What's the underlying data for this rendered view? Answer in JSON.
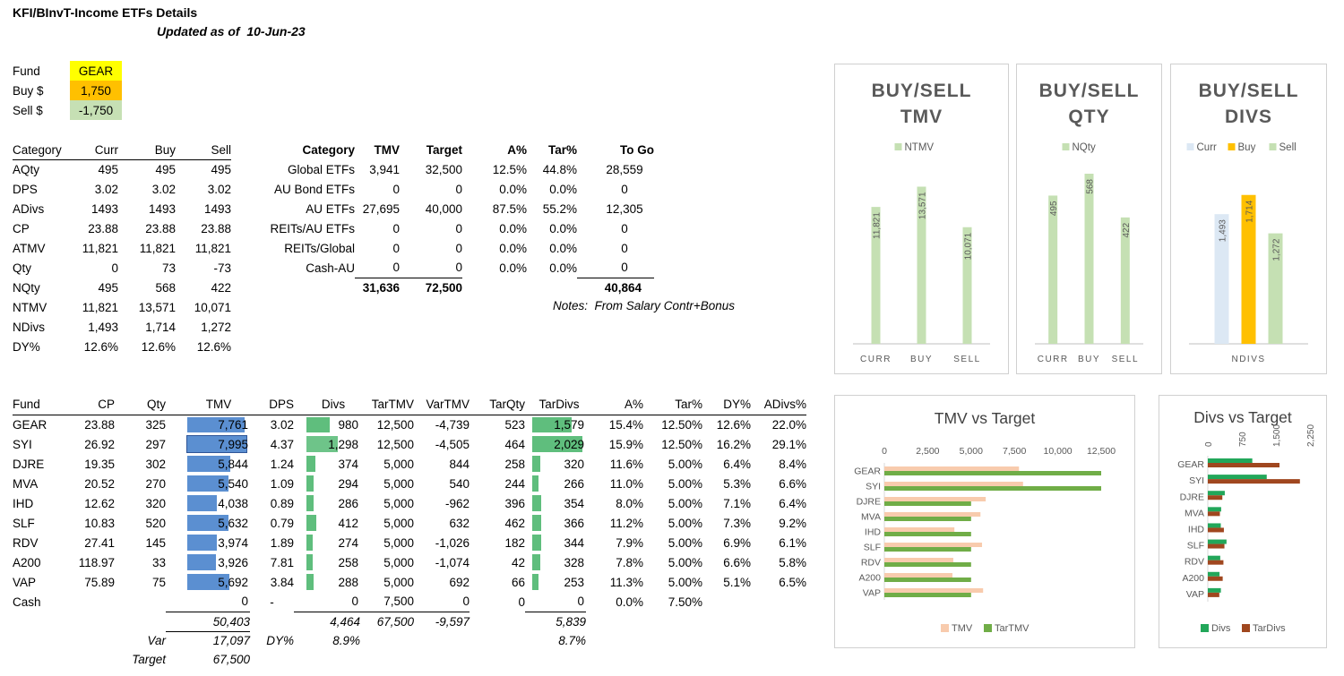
{
  "header": {
    "title": "KFI/BInvT-Income ETFs Details",
    "updated_label": "Updated as of",
    "updated_date": "10-Jun-23"
  },
  "fund_box": [
    {
      "label": "Fund",
      "value": "GEAR",
      "color": "#ffff00"
    },
    {
      "label": "Buy $",
      "value": "1,750",
      "color": "#ffc000"
    },
    {
      "label": "Sell $",
      "value": "-1,750",
      "color": "#c6e0b4"
    }
  ],
  "summary": {
    "headers": [
      "Category",
      "Curr",
      "Buy",
      "Sell"
    ],
    "rows": [
      [
        "AQty",
        "495",
        "495",
        "495"
      ],
      [
        "DPS",
        "3.02",
        "3.02",
        "3.02"
      ],
      [
        "ADivs",
        "1493",
        "1493",
        "1493"
      ],
      [
        "CP",
        "23.88",
        "23.88",
        "23.88"
      ],
      [
        "ATMV",
        "11,821",
        "11,821",
        "11,821"
      ],
      [
        "Qty",
        "0",
        "73",
        "-73"
      ],
      [
        "NQty",
        "495",
        "568",
        "422"
      ],
      [
        "NTMV",
        "11,821",
        "13,571",
        "10,071"
      ],
      [
        "NDivs",
        "1,493",
        "1,714",
        "1,272"
      ],
      [
        "DY%",
        "12.6%",
        "12.6%",
        "12.6%"
      ]
    ]
  },
  "category": {
    "headers": [
      "Category",
      "TMV",
      "Target",
      "A%",
      "Tar%",
      "To Go"
    ],
    "rows": [
      [
        "Global ETFs",
        "3,941",
        "32,500",
        "12.5%",
        "44.8%",
        "28,559"
      ],
      [
        "AU Bond ETFs",
        "0",
        "0",
        "0.0%",
        "0.0%",
        "0"
      ],
      [
        "AU ETFs",
        "27,695",
        "40,000",
        "87.5%",
        "55.2%",
        "12,305"
      ],
      [
        "REITs/AU ETFs",
        "0",
        "0",
        "0.0%",
        "0.0%",
        "0"
      ],
      [
        "REITs/Global",
        "0",
        "0",
        "0.0%",
        "0.0%",
        "0"
      ],
      [
        "Cash-AU",
        "0",
        "0",
        "0.0%",
        "0.0%",
        "0"
      ]
    ],
    "totals": {
      "tmv": "31,636",
      "target": "72,500",
      "togo": "40,864"
    },
    "notes_label": "Notes:",
    "notes_text": "From Salary Contr+Bonus"
  },
  "funds": {
    "headers": [
      "Fund",
      "CP",
      "Qty",
      "TMV",
      "DPS",
      "Divs",
      "TarTMV",
      "VarTMV",
      "TarQty",
      "TarDivs",
      "A%",
      "Tar%",
      "DY%",
      "ADivs%"
    ],
    "rows": [
      {
        "fund": "GEAR",
        "cp": "23.88",
        "qty": "325",
        "tmv": "7,761",
        "dps": "3.02",
        "divs": "980",
        "tartmv": "12,500",
        "vartmv": "-4,739",
        "tarqty": "523",
        "tardivs": "1,579",
        "a": "15.4%",
        "tar": "12.50%",
        "dy": "12.6%",
        "adivs": "22.0%"
      },
      {
        "fund": "SYI",
        "cp": "26.92",
        "qty": "297",
        "tmv": "7,995",
        "dps": "4.37",
        "divs": "1,298",
        "tartmv": "12,500",
        "vartmv": "-4,505",
        "tarqty": "464",
        "tardivs": "2,029",
        "a": "15.9%",
        "tar": "12.50%",
        "dy": "16.2%",
        "adivs": "29.1%"
      },
      {
        "fund": "DJRE",
        "cp": "19.35",
        "qty": "302",
        "tmv": "5,844",
        "dps": "1.24",
        "divs": "374",
        "tartmv": "5,000",
        "vartmv": "844",
        "tarqty": "258",
        "tardivs": "320",
        "a": "11.6%",
        "tar": "5.00%",
        "dy": "6.4%",
        "adivs": "8.4%"
      },
      {
        "fund": "MVA",
        "cp": "20.52",
        "qty": "270",
        "tmv": "5,540",
        "dps": "1.09",
        "divs": "294",
        "tartmv": "5,000",
        "vartmv": "540",
        "tarqty": "244",
        "tardivs": "266",
        "a": "11.0%",
        "tar": "5.00%",
        "dy": "5.3%",
        "adivs": "6.6%"
      },
      {
        "fund": "IHD",
        "cp": "12.62",
        "qty": "320",
        "tmv": "4,038",
        "dps": "0.89",
        "divs": "286",
        "tartmv": "5,000",
        "vartmv": "-962",
        "tarqty": "396",
        "tardivs": "354",
        "a": "8.0%",
        "tar": "5.00%",
        "dy": "7.1%",
        "adivs": "6.4%"
      },
      {
        "fund": "SLF",
        "cp": "10.83",
        "qty": "520",
        "tmv": "5,632",
        "dps": "0.79",
        "divs": "412",
        "tartmv": "5,000",
        "vartmv": "632",
        "tarqty": "462",
        "tardivs": "366",
        "a": "11.2%",
        "tar": "5.00%",
        "dy": "7.3%",
        "adivs": "9.2%"
      },
      {
        "fund": "RDV",
        "cp": "27.41",
        "qty": "145",
        "tmv": "3,974",
        "dps": "1.89",
        "divs": "274",
        "tartmv": "5,000",
        "vartmv": "-1,026",
        "tarqty": "182",
        "tardivs": "344",
        "a": "7.9%",
        "tar": "5.00%",
        "dy": "6.9%",
        "adivs": "6.1%"
      },
      {
        "fund": "A200",
        "cp": "118.97",
        "qty": "33",
        "tmv": "3,926",
        "dps": "7.81",
        "divs": "258",
        "tartmv": "5,000",
        "vartmv": "-1,074",
        "tarqty": "42",
        "tardivs": "328",
        "a": "7.8%",
        "tar": "5.00%",
        "dy": "6.6%",
        "adivs": "5.8%"
      },
      {
        "fund": "VAP",
        "cp": "75.89",
        "qty": "75",
        "tmv": "5,692",
        "dps": "3.84",
        "divs": "288",
        "tartmv": "5,000",
        "vartmv": "692",
        "tarqty": "66",
        "tardivs": "253",
        "a": "11.3%",
        "tar": "5.00%",
        "dy": "5.1%",
        "adivs": "6.5%"
      },
      {
        "fund": "Cash",
        "cp": "",
        "qty": "",
        "tmv": "0",
        "dps": "-",
        "divs": "0",
        "tartmv": "7,500",
        "vartmv": "0",
        "tarqty": "0",
        "tardivs": "0",
        "a": "0.0%",
        "tar": "7.50%",
        "dy": "",
        "adivs": ""
      }
    ],
    "bar_max": {
      "tmv": 8000,
      "divs": 2100,
      "tardivs": 2100
    },
    "totals": {
      "tmv": "50,403",
      "divs": "4,464",
      "tartmv": "67,500",
      "vartmv": "-9,597",
      "tardivs": "5,839"
    },
    "var_label": "Var",
    "var_value": "17,097",
    "dy_label": "DY%",
    "dy_divs": "8.9%",
    "dy_tardivs": "8.7%",
    "target_label": "Target",
    "target_value": "67,500",
    "colors": {
      "tmv_bar": "#5b8fd1",
      "divs_bar": "#5fbe7d"
    }
  },
  "chart_data": [
    {
      "type": "bar",
      "title": "BUY/SELL TMV",
      "title_lines": [
        "BUY/SELL",
        "TMV"
      ],
      "categories": [
        "CURR",
        "BUY",
        "SELL"
      ],
      "series": [
        {
          "name": "NTMV",
          "values": [
            11821,
            13571,
            10071
          ],
          "labels": [
            "11,821",
            "13,571",
            "10,071"
          ],
          "color": "#c5e0b3"
        }
      ],
      "ylim": [
        0,
        15000
      ]
    },
    {
      "type": "bar",
      "title": "BUY/SELL QTY",
      "title_lines": [
        "BUY/SELL",
        "QTY"
      ],
      "categories": [
        "CURR",
        "BUY",
        "SELL"
      ],
      "series": [
        {
          "name": "NQty",
          "values": [
            495,
            568,
            422
          ],
          "labels": [
            "495",
            "568",
            "422"
          ],
          "color": "#c5e0b3"
        }
      ],
      "ylim": [
        0,
        580
      ]
    },
    {
      "type": "bar",
      "title": "BUY/SELL DIVS",
      "title_lines": [
        "BUY/SELL",
        "DIVS"
      ],
      "categories": [
        "NDIVS"
      ],
      "series": [
        {
          "name": "Curr",
          "values": [
            1493
          ],
          "labels": [
            "1,493"
          ],
          "color": "#dce8f4"
        },
        {
          "name": "Buy",
          "values": [
            1714
          ],
          "labels": [
            "1,714"
          ],
          "color": "#ffc000"
        },
        {
          "name": "Sell",
          "values": [
            1272
          ],
          "labels": [
            "1,272"
          ],
          "color": "#c5e0b3"
        }
      ],
      "ylim": [
        0,
        2000
      ]
    },
    {
      "type": "bar",
      "orientation": "horizontal",
      "title": "TMV vs Target",
      "categories": [
        "GEAR",
        "SYI",
        "DJRE",
        "MVA",
        "IHD",
        "SLF",
        "RDV",
        "A200",
        "VAP"
      ],
      "series": [
        {
          "name": "TMV",
          "values": [
            7761,
            7995,
            5844,
            5540,
            4038,
            5632,
            3974,
            3926,
            5692
          ],
          "color": "#f8cbad"
        },
        {
          "name": "TarTMV",
          "values": [
            12500,
            12500,
            5000,
            5000,
            5000,
            5000,
            5000,
            5000,
            5000
          ],
          "color": "#70ad47"
        }
      ],
      "xlim": [
        0,
        12500
      ],
      "xticks": [
        "0",
        "2,500",
        "5,000",
        "7,500",
        "10,000",
        "12,500"
      ]
    },
    {
      "type": "bar",
      "orientation": "horizontal",
      "title": "Divs vs Target",
      "categories": [
        "GEAR",
        "SYI",
        "DJRE",
        "MVA",
        "IHD",
        "SLF",
        "RDV",
        "A200",
        "VAP"
      ],
      "series": [
        {
          "name": "Divs",
          "values": [
            980,
            1298,
            374,
            294,
            286,
            412,
            274,
            258,
            288
          ],
          "color": "#22a75a"
        },
        {
          "name": "TarDivs",
          "values": [
            1579,
            2029,
            320,
            266,
            354,
            366,
            344,
            328,
            253
          ],
          "color": "#a0471f"
        }
      ],
      "xlim": [
        0,
        2250
      ],
      "xticks": [
        "0",
        "750",
        "1,500",
        "2,250"
      ]
    }
  ]
}
